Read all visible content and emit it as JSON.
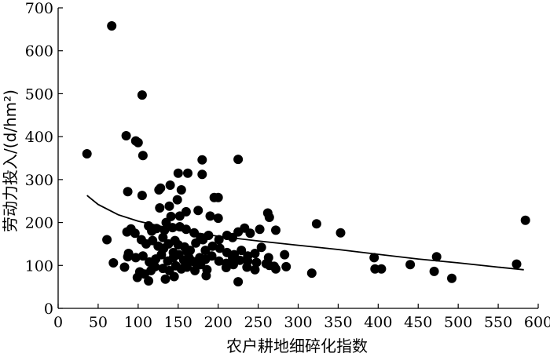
{
  "chart_data": {
    "type": "scatter",
    "title": "",
    "xlabel": "农户耕地细碎化指数",
    "ylabel": "劳动力投入/(d/hm²)",
    "xlim": [
      0,
      600
    ],
    "ylim": [
      0,
      700
    ],
    "x_ticks": [
      0,
      50,
      100,
      150,
      200,
      250,
      300,
      350,
      400,
      450,
      500,
      550,
      600
    ],
    "y_ticks": [
      0,
      100,
      200,
      300,
      400,
      500,
      600,
      700
    ],
    "grid": false,
    "legend": "none",
    "colors": {
      "points": "#000000",
      "trend": "#000000",
      "axes": "#000000"
    },
    "points": [
      [
        67,
        658
      ],
      [
        105,
        497
      ],
      [
        85,
        402
      ],
      [
        97,
        390
      ],
      [
        100,
        386
      ],
      [
        36,
        360
      ],
      [
        106,
        356
      ],
      [
        225,
        347
      ],
      [
        180,
        346
      ],
      [
        150,
        315
      ],
      [
        162,
        315
      ],
      [
        180,
        312
      ],
      [
        140,
        287
      ],
      [
        128,
        280
      ],
      [
        126,
        276
      ],
      [
        87,
        272
      ],
      [
        154,
        276
      ],
      [
        105,
        263
      ],
      [
        195,
        258
      ],
      [
        200,
        258
      ],
      [
        149,
        253
      ],
      [
        262,
        222
      ],
      [
        127,
        234
      ],
      [
        139,
        238
      ],
      [
        160,
        225
      ],
      [
        175,
        228
      ],
      [
        264,
        212
      ],
      [
        141,
        214
      ],
      [
        152,
        215
      ],
      [
        190,
        215
      ],
      [
        200,
        210
      ],
      [
        61,
        160
      ],
      [
        91,
        185
      ],
      [
        86,
        178
      ],
      [
        96,
        175
      ],
      [
        113,
        192
      ],
      [
        117,
        180
      ],
      [
        123,
        186
      ],
      [
        133,
        182
      ],
      [
        143,
        188
      ],
      [
        152,
        190
      ],
      [
        160,
        184
      ],
      [
        170,
        176
      ],
      [
        178,
        165
      ],
      [
        188,
        170
      ],
      [
        201,
        160
      ],
      [
        211,
        170
      ],
      [
        218,
        165
      ],
      [
        225,
        178
      ],
      [
        233,
        187
      ],
      [
        240,
        175
      ],
      [
        252,
        184
      ],
      [
        272,
        182
      ],
      [
        323,
        197
      ],
      [
        353,
        176
      ],
      [
        584,
        205
      ],
      [
        104,
        160
      ],
      [
        110,
        150
      ],
      [
        118,
        158
      ],
      [
        125,
        145
      ],
      [
        132,
        140
      ],
      [
        138,
        150
      ],
      [
        146,
        158
      ],
      [
        150,
        148
      ],
      [
        158,
        143
      ],
      [
        165,
        135
      ],
      [
        172,
        152
      ],
      [
        181,
        160
      ],
      [
        193,
        145
      ],
      [
        202,
        140
      ],
      [
        211,
        130
      ],
      [
        220,
        125
      ],
      [
        229,
        135
      ],
      [
        237,
        122
      ],
      [
        246,
        128
      ],
      [
        254,
        142
      ],
      [
        263,
        118
      ],
      [
        88,
        128
      ],
      [
        97,
        118
      ],
      [
        106,
        122
      ],
      [
        114,
        108
      ],
      [
        122,
        115
      ],
      [
        129,
        125
      ],
      [
        137,
        110
      ],
      [
        144,
        118
      ],
      [
        151,
        125
      ],
      [
        157,
        112
      ],
      [
        163,
        120
      ],
      [
        170,
        108
      ],
      [
        177,
        118
      ],
      [
        184,
        114
      ],
      [
        192,
        122
      ],
      [
        201,
        110
      ],
      [
        210,
        105
      ],
      [
        218,
        118
      ],
      [
        227,
        112
      ],
      [
        237,
        110
      ],
      [
        248,
        107
      ],
      [
        260,
        104
      ],
      [
        270,
        98
      ],
      [
        283,
        125
      ],
      [
        87,
        120
      ],
      [
        69,
        106
      ],
      [
        83,
        96
      ],
      [
        102,
        85
      ],
      [
        108,
        80
      ],
      [
        116,
        88
      ],
      [
        121,
        97
      ],
      [
        131,
        93
      ],
      [
        139,
        88
      ],
      [
        147,
        99
      ],
      [
        154,
        92
      ],
      [
        161,
        96
      ],
      [
        171,
        88
      ],
      [
        178,
        102
      ],
      [
        186,
        90
      ],
      [
        210,
        95
      ],
      [
        219,
        102
      ],
      [
        236,
        96
      ],
      [
        246,
        90
      ],
      [
        264,
        100
      ],
      [
        272,
        92
      ],
      [
        285,
        97
      ],
      [
        317,
        82
      ],
      [
        99,
        72
      ],
      [
        113,
        64
      ],
      [
        134,
        68
      ],
      [
        145,
        74
      ],
      [
        185,
        76
      ],
      [
        225,
        62
      ],
      [
        395,
        118
      ],
      [
        473,
        120
      ],
      [
        396,
        92
      ],
      [
        404,
        92
      ],
      [
        440,
        102
      ],
      [
        470,
        86
      ],
      [
        492,
        70
      ],
      [
        573,
        103
      ],
      [
        135,
        200
      ],
      [
        131,
        165
      ],
      [
        161,
        133
      ],
      [
        144,
        130
      ],
      [
        166,
        112
      ],
      [
        184,
        135
      ]
    ],
    "trend_line": {
      "type": "power-fit",
      "points": [
        [
          36,
          263
        ],
        [
          50,
          242
        ],
        [
          75,
          218
        ],
        [
          100,
          203
        ],
        [
          150,
          182
        ],
        [
          200,
          168
        ],
        [
          250,
          157
        ],
        [
          300,
          147
        ],
        [
          350,
          137
        ],
        [
          400,
          126
        ],
        [
          450,
          115
        ],
        [
          500,
          106
        ],
        [
          550,
          96
        ],
        [
          582,
          90
        ]
      ]
    }
  }
}
